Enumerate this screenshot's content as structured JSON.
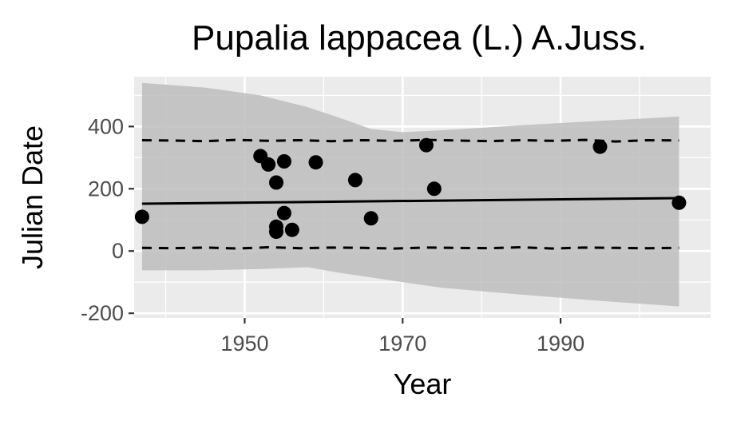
{
  "chart_data": {
    "type": "scatter",
    "title": "Pupalia lappacea (L.) A.Juss.",
    "xlabel": "Year",
    "ylabel": "Julian Date",
    "xlim": [
      1936,
      2009
    ],
    "ylim": [
      -215,
      560
    ],
    "x_ticks": [
      1950,
      1970,
      1990
    ],
    "x_tick_labels": [
      "1950",
      "1970",
      "1990"
    ],
    "y_ticks": [
      -200,
      0,
      200,
      400
    ],
    "y_tick_labels": [
      "-200",
      "0",
      "200",
      "400"
    ],
    "grid": true,
    "legend": "none",
    "points": [
      {
        "x": 1937,
        "y": 110
      },
      {
        "x": 1952,
        "y": 305
      },
      {
        "x": 1953,
        "y": 278
      },
      {
        "x": 1954,
        "y": 220
      },
      {
        "x": 1954,
        "y": 78
      },
      {
        "x": 1954,
        "y": 62
      },
      {
        "x": 1955,
        "y": 288
      },
      {
        "x": 1955,
        "y": 122
      },
      {
        "x": 1956,
        "y": 68
      },
      {
        "x": 1959,
        "y": 285
      },
      {
        "x": 1964,
        "y": 228
      },
      {
        "x": 1966,
        "y": 105
      },
      {
        "x": 1973,
        "y": 340
      },
      {
        "x": 1974,
        "y": 200
      },
      {
        "x": 1995,
        "y": 335
      },
      {
        "x": 2005,
        "y": 155
      }
    ],
    "fit_line": {
      "x": [
        1937,
        2005
      ],
      "y": [
        152,
        170
      ]
    },
    "upper_band": {
      "x": [
        1937,
        1941,
        1945,
        1949,
        1953,
        1957,
        1961,
        1965,
        1969,
        1973,
        1977,
        1981,
        1985,
        1989,
        1993,
        1997,
        2001,
        2005
      ],
      "y": [
        356,
        355,
        353,
        357,
        354,
        356,
        353,
        356,
        354,
        357,
        355,
        353,
        356,
        354,
        357,
        352,
        356,
        355
      ]
    },
    "lower_band": {
      "x": [
        1937,
        1941,
        1945,
        1949,
        1953,
        1957,
        1961,
        1965,
        1969,
        1973,
        1977,
        1981,
        1985,
        1989,
        1993,
        1997,
        2001,
        2005
      ],
      "y": [
        10,
        9,
        11,
        8,
        12,
        9,
        11,
        10,
        8,
        11,
        10,
        9,
        12,
        8,
        11,
        10,
        9,
        10
      ]
    },
    "ribbon": {
      "x": [
        1937,
        1945,
        1952,
        1958,
        1962,
        1966,
        1970,
        1975,
        1985,
        1995,
        2005
      ],
      "upper": [
        540,
        525,
        500,
        462,
        428,
        392,
        382,
        388,
        404,
        418,
        432
      ],
      "lower": [
        -62,
        -62,
        -58,
        -52,
        -70,
        -85,
        -100,
        -118,
        -140,
        -160,
        -178
      ]
    },
    "colors": {
      "panel": "#ebebeb",
      "grid": "#ffffff",
      "ribbon": "#bdbdbd",
      "points": "#000000",
      "line": "#000000",
      "tick_text": "#4d4d4d"
    }
  }
}
